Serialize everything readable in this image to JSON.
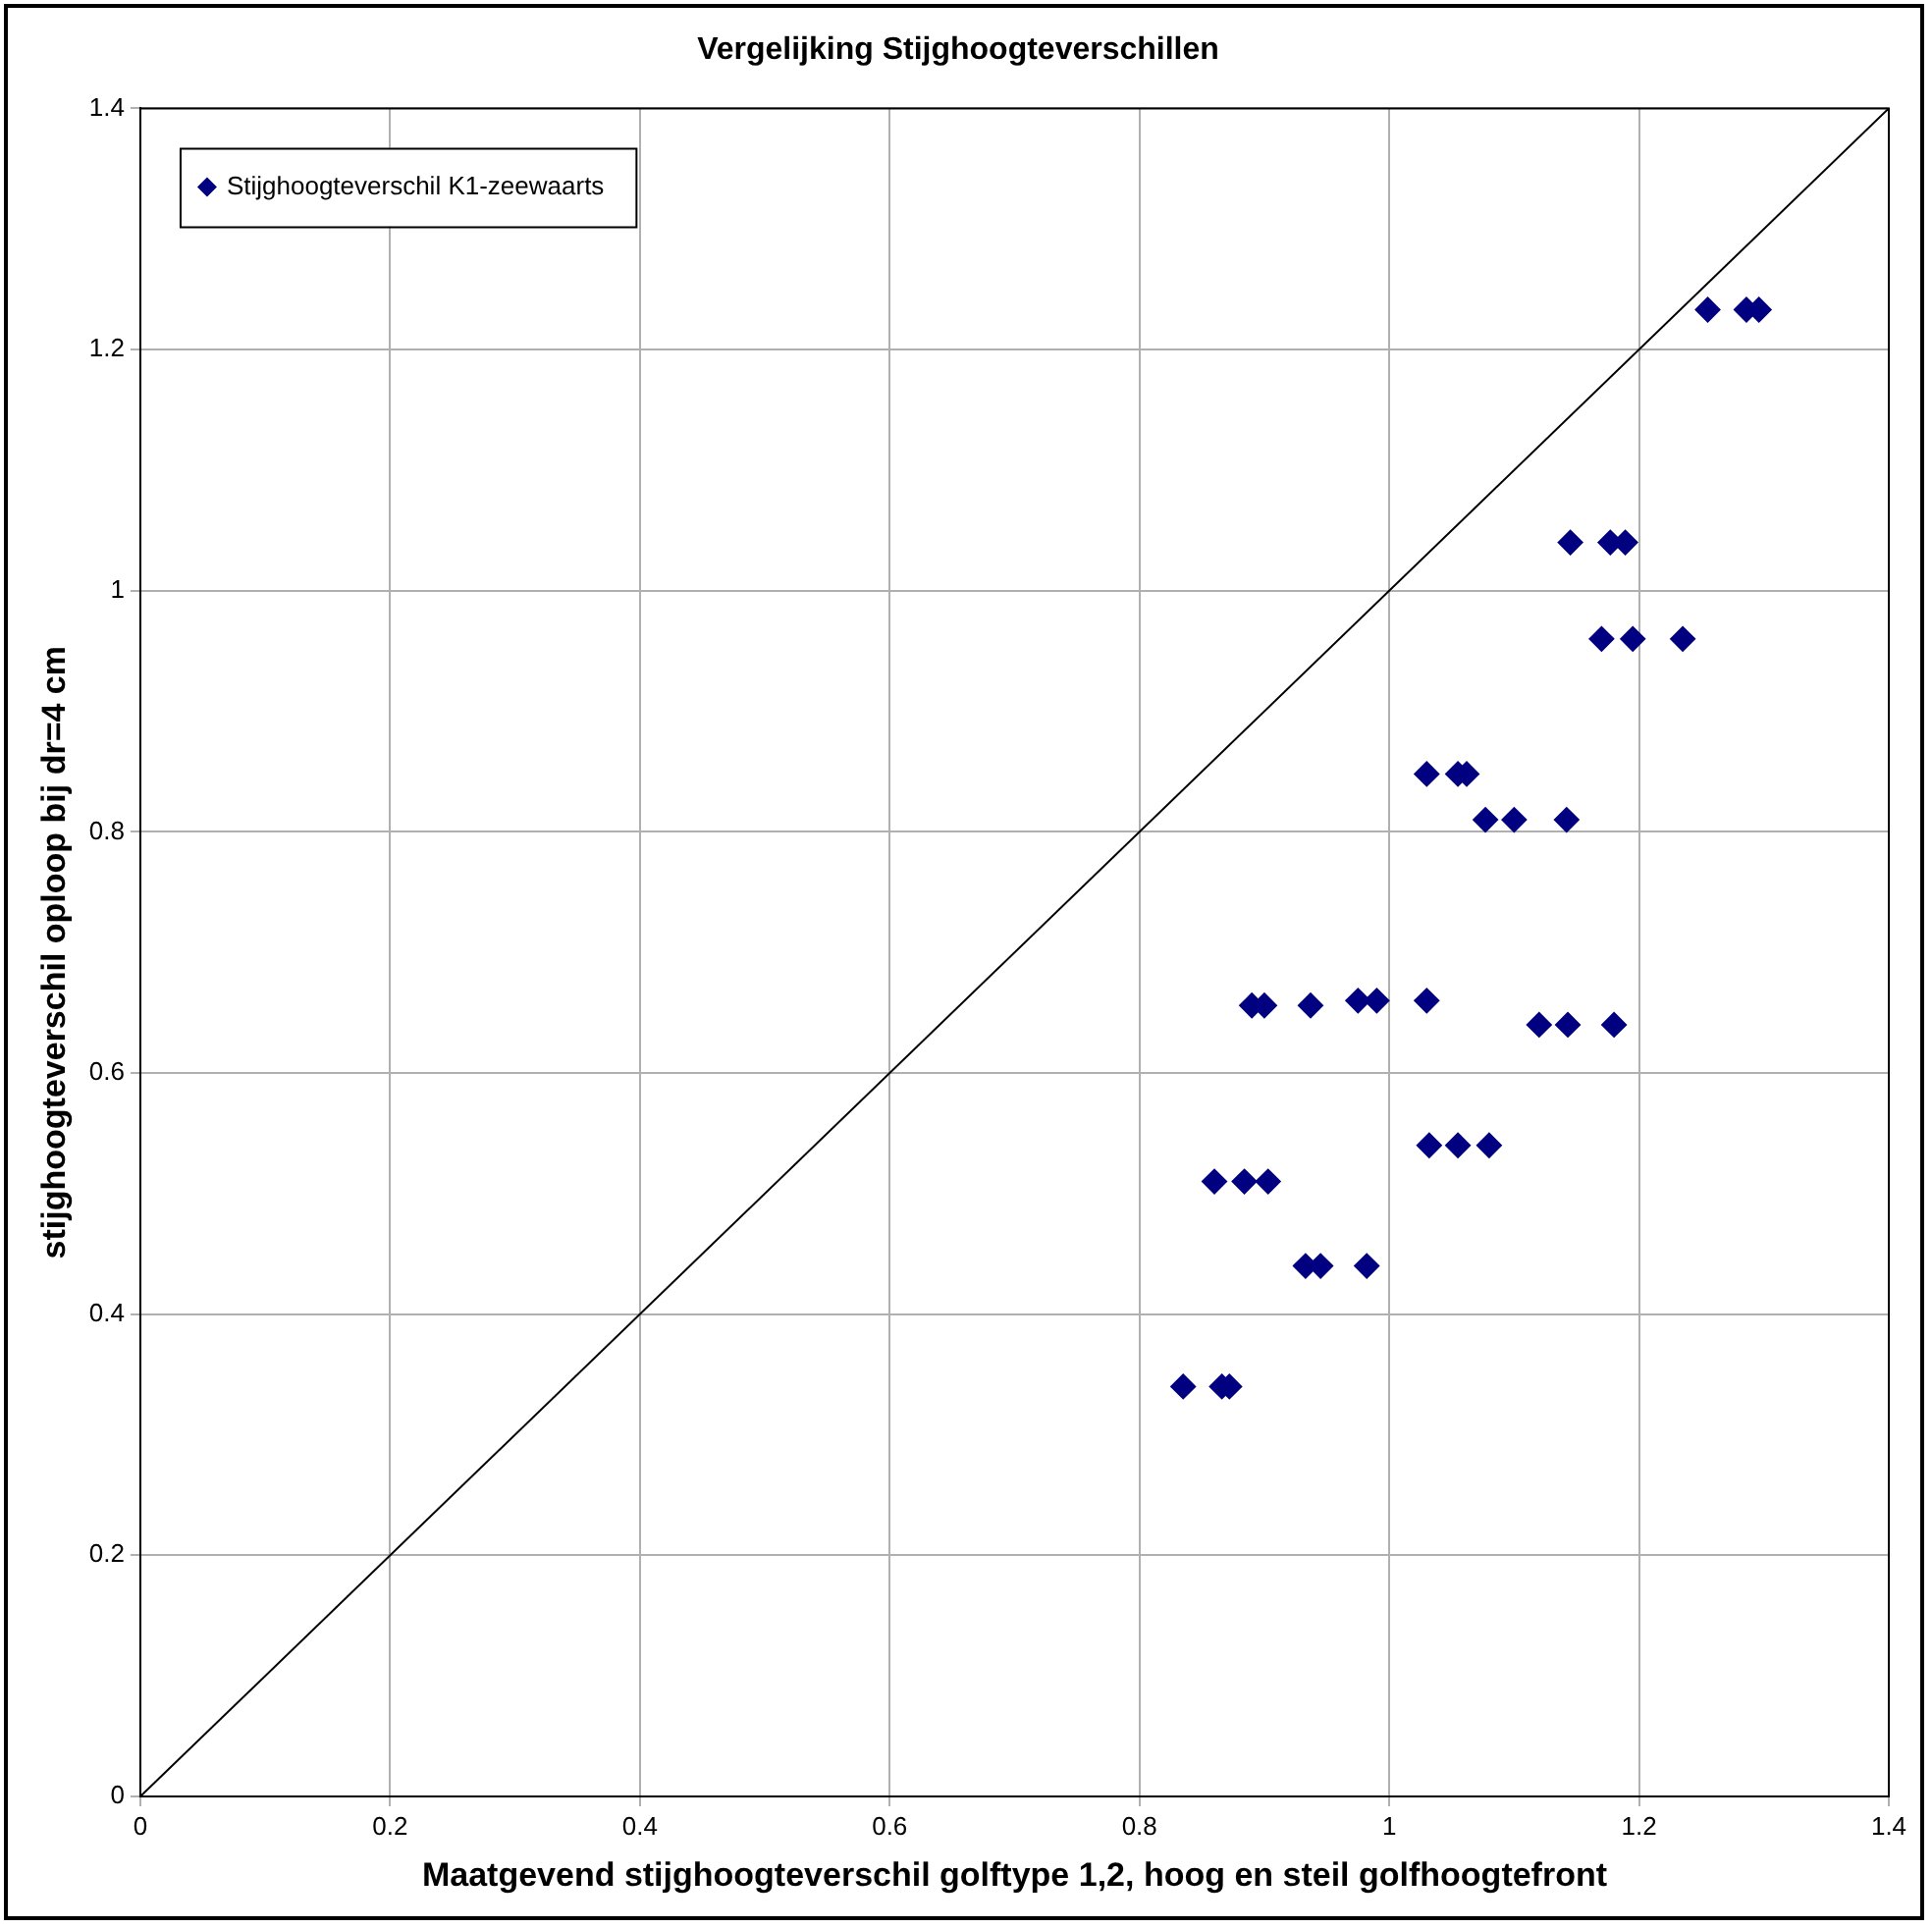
{
  "chart_data": {
    "type": "scatter",
    "title": "Vergelijking Stijghoogteverschillen",
    "xlabel": "Maatgevend stijghoogteverschil golftype 1,2, hoog en steil golfhoogtefront",
    "ylabel": "stijghoogteverschil oploop bij dr=4 cm",
    "xlim": [
      0,
      1.4
    ],
    "xticks": [
      0,
      0.2,
      0.4,
      0.6,
      0.8,
      1,
      1.2,
      1.4
    ],
    "ylim": [
      0,
      1.4
    ],
    "yticks": [
      0,
      0.2,
      0.4,
      0.6,
      0.8,
      1,
      1.2,
      1.4
    ],
    "grid": true,
    "legend": "top left",
    "marker": "diamond",
    "series": [
      {
        "name": "Stijghoogteverschil K1-zeewaarts",
        "color": "#000080",
        "x": [
          1.255,
          1.286,
          1.296,
          1.145,
          1.177,
          1.189,
          1.17,
          1.195,
          1.235,
          1.03,
          1.055,
          1.062,
          1.077,
          1.1,
          1.142,
          0.89,
          0.9,
          0.937,
          0.975,
          0.99,
          1.03,
          1.12,
          1.143,
          1.18,
          1.032,
          1.055,
          1.08,
          0.86,
          0.884,
          0.903,
          0.933,
          0.945,
          0.982,
          0.835,
          0.866,
          0.872
        ],
        "values": [
          1.233,
          1.233,
          1.233,
          1.04,
          1.04,
          1.04,
          0.96,
          0.96,
          0.96,
          0.848,
          0.848,
          0.848,
          0.81,
          0.81,
          0.81,
          0.656,
          0.656,
          0.656,
          0.66,
          0.66,
          0.66,
          0.64,
          0.64,
          0.64,
          0.54,
          0.54,
          0.54,
          0.51,
          0.51,
          0.51,
          0.44,
          0.44,
          0.44,
          0.34,
          0.34,
          0.34
        ]
      },
      {
        "type": "line",
        "color": "#000000",
        "marker": "none",
        "line_style": "solid",
        "x": [
          0,
          1.4
        ],
        "values": [
          0,
          1.4
        ]
      }
    ]
  }
}
